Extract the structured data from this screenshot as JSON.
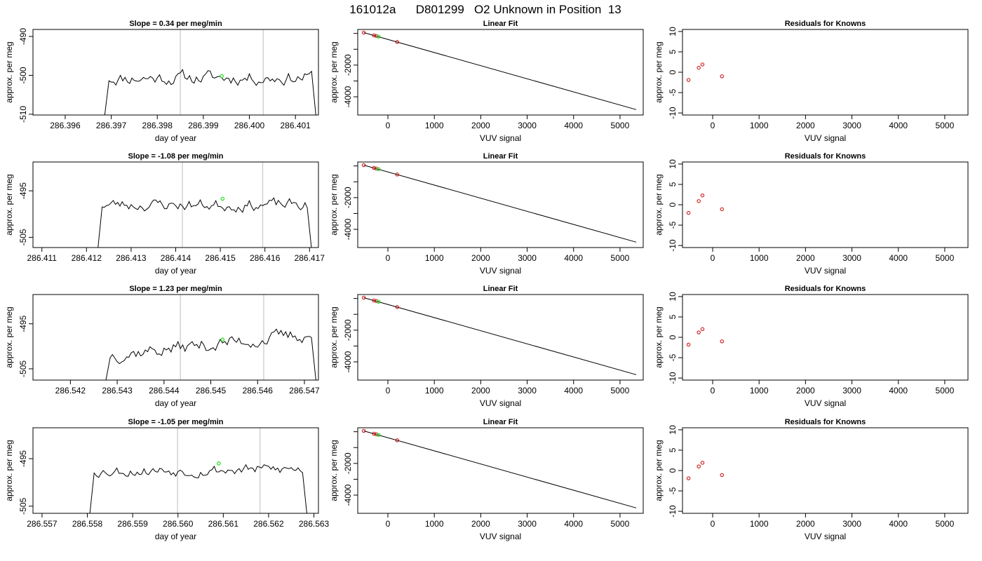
{
  "figure": {
    "main_title": "161012a      D801299   O2 Unknown in Position  13"
  },
  "colors": {
    "series_line": "#000000",
    "vertical_markers": "#cccccc",
    "highlight_point": "#22dd22",
    "known_points": "#cc0000",
    "fit_line": "#000000"
  },
  "chart_data": [
    {
      "type": "line",
      "row": 1,
      "title": "Slope =  0.34  per meg/min",
      "xlabel": "day of year",
      "ylabel": "approx. per meg",
      "xlim": [
        286.3953,
        286.4015
      ],
      "ylim": [
        -510.2,
        -488.2
      ],
      "xticks": [
        "286.396",
        "286.397",
        "286.398",
        "286.399",
        "286.400",
        "286.401"
      ],
      "xtick_values": [
        286.396,
        286.397,
        286.398,
        286.399,
        286.4,
        286.401
      ],
      "yticks": [
        "-510",
        "-500",
        "-490"
      ],
      "ytick_values": [
        -510,
        -500,
        -490
      ],
      "vlines": [
        286.3985,
        286.4003
      ],
      "highlight": {
        "x": 286.3994,
        "y": -500.2
      },
      "series": {
        "x_start": 286.39695,
        "x_end": 286.40135,
        "step": 5e-05,
        "base": -500.6,
        "amplitude": 2.2,
        "seed": 11,
        "trend": 0.15
      },
      "ends": {
        "start_y": -511,
        "end_y": -511
      }
    },
    {
      "type": "scatter",
      "row": 1,
      "title": "Linear Fit",
      "xlabel": "VUV signal",
      "ylabel": "approx. per meg",
      "xlim": [
        -650,
        5500
      ],
      "ylim": [
        -5150,
        250
      ],
      "xticks": [
        "0",
        "1000",
        "2000",
        "3000",
        "4000",
        "5000"
      ],
      "xtick_values": [
        0,
        1000,
        2000,
        3000,
        4000,
        5000
      ],
      "yticks": [
        "-4000",
        "-3000",
        "-2000",
        "-1000",
        "0"
      ],
      "ytick_values": [
        -4000,
        -3000,
        -2000,
        -1000,
        0
      ],
      "ytick_labels_shown": [
        "-4000",
        "-2000"
      ],
      "fit_line": {
        "x": [
          -520,
          5350
        ],
        "y": [
          51,
          -4810
        ]
      },
      "knowns": [
        {
          "x": -520,
          "y": 51
        },
        {
          "x": -300,
          "y": -125
        },
        {
          "x": -250,
          "y": -163
        },
        {
          "x": 200,
          "y": -541
        }
      ],
      "unknown": {
        "x": -200,
        "y": -205
      }
    },
    {
      "type": "scatter",
      "row": 1,
      "title": "Residuals for Knowns",
      "xlabel": "VUV signal",
      "ylabel": "approx. per meg",
      "xlim": [
        -650,
        5500
      ],
      "ylim": [
        -10.5,
        10.5
      ],
      "xticks": [
        "0",
        "1000",
        "2000",
        "3000",
        "4000",
        "5000"
      ],
      "xtick_values": [
        0,
        1000,
        2000,
        3000,
        4000,
        5000
      ],
      "yticks": [
        "-10",
        "-5",
        "0",
        "5",
        "10"
      ],
      "ytick_values": [
        -10,
        -5,
        0,
        5,
        10
      ],
      "points": [
        {
          "x": -520,
          "y": -1.9
        },
        {
          "x": -300,
          "y": 1.1
        },
        {
          "x": -220,
          "y": 1.9
        },
        {
          "x": 200,
          "y": -1.0
        }
      ]
    },
    {
      "type": "line",
      "row": 2,
      "title": "Slope =  -1.08  per meg/min",
      "xlabel": "day of year",
      "ylabel": "approx. per meg",
      "xlim": [
        286.4108,
        286.4172
      ],
      "ylim": [
        -507.2,
        -488.8
      ],
      "xticks": [
        "286.411",
        "286.412",
        "286.413",
        "286.414",
        "286.415",
        "286.416",
        "286.417"
      ],
      "xtick_values": [
        286.411,
        286.412,
        286.413,
        286.414,
        286.415,
        286.416,
        286.417
      ],
      "yticks": [
        "-505",
        "-495"
      ],
      "ytick_values": [
        -505,
        -495
      ],
      "vlines": [
        286.41415,
        286.41595
      ],
      "highlight": {
        "x": 286.41505,
        "y": -496.7
      },
      "series": {
        "x_start": 286.41235,
        "x_end": 286.41695,
        "step": 5e-05,
        "base": -498.0,
        "amplitude": 1.6,
        "seed": 23,
        "trend": -0.1
      },
      "ends": {
        "start_y": -508,
        "end_y": -508
      }
    },
    {
      "type": "scatter",
      "row": 2,
      "title": "Linear Fit",
      "xlabel": "VUV signal",
      "ylabel": "approx. per meg",
      "xlim": [
        -650,
        5500
      ],
      "ylim": [
        -5150,
        250
      ],
      "xticks": [
        "0",
        "1000",
        "2000",
        "3000",
        "4000",
        "5000"
      ],
      "xtick_values": [
        0,
        1000,
        2000,
        3000,
        4000,
        5000
      ],
      "yticks": [
        "-4000",
        "-3000",
        "-2000",
        "-1000",
        "0"
      ],
      "ytick_values": [
        -4000,
        -3000,
        -2000,
        -1000,
        0
      ],
      "ytick_labels_shown": [
        "-4000",
        "-2000"
      ],
      "fit_line": {
        "x": [
          -520,
          5350
        ],
        "y": [
          51,
          -4810
        ]
      },
      "knowns": [
        {
          "x": -520,
          "y": 51
        },
        {
          "x": -300,
          "y": -125
        },
        {
          "x": -250,
          "y": -163
        },
        {
          "x": 200,
          "y": -541
        }
      ],
      "unknown": {
        "x": -200,
        "y": -205
      }
    },
    {
      "type": "scatter",
      "row": 2,
      "title": "Residuals for Knowns",
      "xlabel": "VUV signal",
      "ylabel": "approx. per meg",
      "xlim": [
        -650,
        5500
      ],
      "ylim": [
        -10.5,
        10.5
      ],
      "xticks": [
        "0",
        "1000",
        "2000",
        "3000",
        "4000",
        "5000"
      ],
      "xtick_values": [
        0,
        1000,
        2000,
        3000,
        4000,
        5000
      ],
      "yticks": [
        "-10",
        "-5",
        "0",
        "5",
        "10"
      ],
      "ytick_values": [
        -10,
        -5,
        0,
        5,
        10
      ],
      "points": [
        {
          "x": -520,
          "y": -2.0
        },
        {
          "x": -300,
          "y": 0.9
        },
        {
          "x": -220,
          "y": 2.3
        },
        {
          "x": 200,
          "y": -1.1
        }
      ]
    },
    {
      "type": "line",
      "row": 3,
      "title": "Slope =  1.23  per meg/min",
      "xlabel": "day of year",
      "ylabel": "approx. per meg",
      "xlim": [
        286.5412,
        286.5473
      ],
      "ylim": [
        -507.5,
        -488.5
      ],
      "xticks": [
        "286.542",
        "286.543",
        "286.544",
        "286.545",
        "286.546",
        "286.547"
      ],
      "xtick_values": [
        286.542,
        286.543,
        286.544,
        286.545,
        286.546,
        286.547
      ],
      "yticks": [
        "-505",
        "-495"
      ],
      "ytick_values": [
        -505,
        -495
      ],
      "vlines": [
        286.54435,
        286.54613
      ],
      "highlight": {
        "x": 286.54525,
        "y": -498.5
      },
      "series": {
        "x_start": 286.54285,
        "x_end": 286.54715,
        "step": 5e-05,
        "base": -499.6,
        "amplitude": 2.0,
        "seed": 37,
        "trend": 4.5
      },
      "ends": {
        "start_y": -508,
        "end_y": -508
      }
    },
    {
      "type": "scatter",
      "row": 3,
      "title": "Linear Fit",
      "xlabel": "VUV signal",
      "ylabel": "approx. per meg",
      "xlim": [
        -650,
        5500
      ],
      "ylim": [
        -5150,
        250
      ],
      "xticks": [
        "0",
        "1000",
        "2000",
        "3000",
        "4000",
        "5000"
      ],
      "xtick_values": [
        0,
        1000,
        2000,
        3000,
        4000,
        5000
      ],
      "yticks": [
        "-4000",
        "-3000",
        "-2000",
        "-1000",
        "0"
      ],
      "ytick_values": [
        -4000,
        -3000,
        -2000,
        -1000,
        0
      ],
      "ytick_labels_shown": [
        "-4000",
        "-2000"
      ],
      "fit_line": {
        "x": [
          -520,
          5350
        ],
        "y": [
          51,
          -4810
        ]
      },
      "knowns": [
        {
          "x": -520,
          "y": 51
        },
        {
          "x": -300,
          "y": -125
        },
        {
          "x": -250,
          "y": -163
        },
        {
          "x": 200,
          "y": -541
        }
      ],
      "unknown": {
        "x": -200,
        "y": -205
      }
    },
    {
      "type": "scatter",
      "row": 3,
      "title": "Residuals for Knowns",
      "xlabel": "VUV signal",
      "ylabel": "approx. per meg",
      "xlim": [
        -650,
        5500
      ],
      "ylim": [
        -10.5,
        10.5
      ],
      "xticks": [
        "0",
        "1000",
        "2000",
        "3000",
        "4000",
        "5000"
      ],
      "xtick_values": [
        0,
        1000,
        2000,
        3000,
        4000,
        5000
      ],
      "yticks": [
        "-10",
        "-5",
        "0",
        "5",
        "10"
      ],
      "ytick_values": [
        -10,
        -5,
        0,
        5,
        10
      ],
      "points": [
        {
          "x": -520,
          "y": -1.8
        },
        {
          "x": -300,
          "y": 1.2
        },
        {
          "x": -220,
          "y": 2.0
        },
        {
          "x": 200,
          "y": -1.0
        }
      ]
    },
    {
      "type": "line",
      "row": 4,
      "title": "Slope =  -1.05  per meg/min",
      "xlabel": "day of year",
      "ylabel": "approx. per meg",
      "xlim": [
        286.5568,
        286.5631
      ],
      "ylim": [
        -506.5,
        -488.5
      ],
      "xticks": [
        "286.557",
        "286.558",
        "286.559",
        "286.560",
        "286.561",
        "286.562",
        "286.563"
      ],
      "xtick_values": [
        286.557,
        286.558,
        286.559,
        286.56,
        286.561,
        286.562,
        286.563
      ],
      "yticks": [
        "-505",
        "-495"
      ],
      "ytick_values": [
        -505,
        -495
      ],
      "vlines": [
        286.55999,
        286.56181
      ],
      "highlight": {
        "x": 286.5609,
        "y": -496.0
      },
      "series": {
        "x_start": 286.55815,
        "x_end": 286.56275,
        "step": 5e-05,
        "base": -497.4,
        "amplitude": 1.5,
        "seed": 53,
        "trend": 0.3
      },
      "ends": {
        "start_y": -507,
        "end_y": -507
      }
    },
    {
      "type": "scatter",
      "row": 4,
      "title": "Linear Fit",
      "xlabel": "VUV signal",
      "ylabel": "approx. per meg",
      "xlim": [
        -650,
        5500
      ],
      "ylim": [
        -5150,
        250
      ],
      "xticks": [
        "0",
        "1000",
        "2000",
        "3000",
        "4000",
        "5000"
      ],
      "xtick_values": [
        0,
        1000,
        2000,
        3000,
        4000,
        5000
      ],
      "yticks": [
        "-4000",
        "-3000",
        "-2000",
        "-1000",
        "0"
      ],
      "ytick_values": [
        -4000,
        -3000,
        -2000,
        -1000,
        0
      ],
      "ytick_labels_shown": [
        "-4000",
        "-2000"
      ],
      "fit_line": {
        "x": [
          -520,
          5350
        ],
        "y": [
          51,
          -4810
        ]
      },
      "knowns": [
        {
          "x": -520,
          "y": 51
        },
        {
          "x": -300,
          "y": -125
        },
        {
          "x": -250,
          "y": -163
        },
        {
          "x": 200,
          "y": -541
        }
      ],
      "unknown": {
        "x": -200,
        "y": -205
      }
    },
    {
      "type": "scatter",
      "row": 4,
      "title": "Residuals for Knowns",
      "xlabel": "VUV signal",
      "ylabel": "approx. per meg",
      "xlim": [
        -650,
        5500
      ],
      "ylim": [
        -10.5,
        10.5
      ],
      "xticks": [
        "0",
        "1000",
        "2000",
        "3000",
        "4000",
        "5000"
      ],
      "xtick_values": [
        0,
        1000,
        2000,
        3000,
        4000,
        5000
      ],
      "yticks": [
        "-10",
        "-5",
        "0",
        "5",
        "10"
      ],
      "ytick_values": [
        -10,
        -5,
        0,
        5,
        10
      ],
      "points": [
        {
          "x": -520,
          "y": -1.9
        },
        {
          "x": -300,
          "y": 1.0
        },
        {
          "x": -220,
          "y": 1.9
        },
        {
          "x": 200,
          "y": -1.1
        }
      ]
    }
  ]
}
